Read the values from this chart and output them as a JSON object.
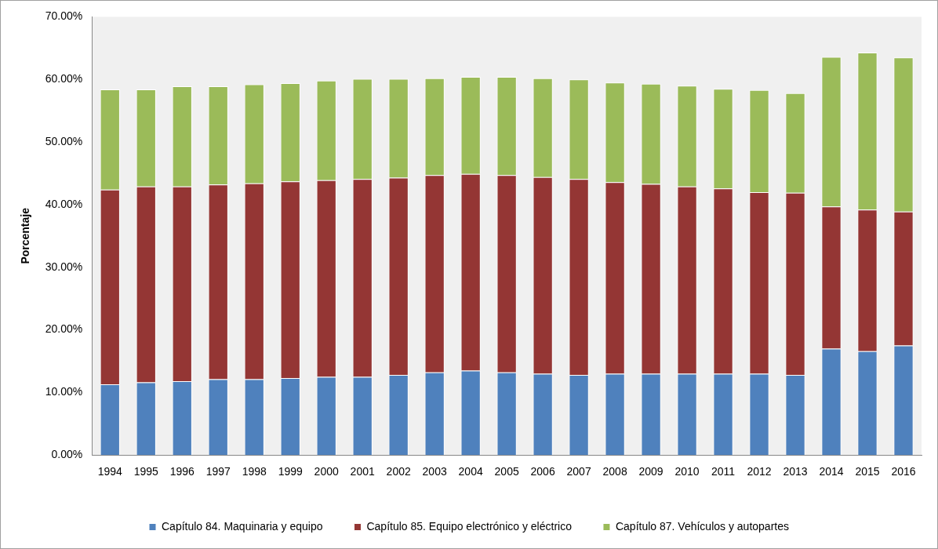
{
  "chart_data": {
    "type": "bar",
    "stacked": true,
    "ylabel": "Porcentaje",
    "legend": "bottom",
    "grid": false,
    "categories": [
      "1994",
      "1995",
      "1996",
      "1997",
      "1998",
      "1999",
      "2000",
      "2001",
      "2002",
      "2003",
      "2004",
      "2005",
      "2006",
      "2007",
      "2008",
      "2009",
      "2010",
      "2011",
      "2012",
      "2013",
      "2014",
      "2015",
      "2016"
    ],
    "ylim": [
      0,
      70
    ],
    "yticks": [
      {
        "value": 0,
        "label": "0.00%"
      },
      {
        "value": 10,
        "label": "10.00%"
      },
      {
        "value": 20,
        "label": "20.00%"
      },
      {
        "value": 30,
        "label": "30.00%"
      },
      {
        "value": 40,
        "label": "40.00%"
      },
      {
        "value": 50,
        "label": "50.00%"
      },
      {
        "value": 60,
        "label": "60.00%"
      },
      {
        "value": 70,
        "label": "70.00%"
      }
    ],
    "series": [
      {
        "name": "Capítulo 84. Maquinaria y equipo",
        "color": "#4f81bd",
        "values": [
          11.3,
          11.6,
          11.8,
          12.1,
          12.1,
          12.3,
          12.5,
          12.5,
          12.8,
          13.2,
          13.5,
          13.2,
          13.0,
          12.8,
          13.0,
          13.0,
          13.0,
          13.0,
          13.0,
          12.8,
          17.0,
          16.6,
          17.5
        ]
      },
      {
        "name": "Capítulo 85. Equipo electrónico y eléctrico",
        "color": "#943634",
        "values": [
          31.1,
          31.3,
          31.1,
          31.1,
          31.3,
          31.4,
          31.4,
          31.6,
          31.5,
          31.5,
          31.4,
          31.5,
          31.4,
          31.3,
          30.6,
          30.3,
          29.9,
          29.6,
          29.0,
          29.1,
          22.7,
          22.6,
          21.4
        ]
      },
      {
        "name": "Capítulo 87. Vehículos y autopartes",
        "color": "#9bbb59",
        "values": [
          16.0,
          15.5,
          16.0,
          15.7,
          15.8,
          15.7,
          15.9,
          16.0,
          15.8,
          15.5,
          15.5,
          15.7,
          15.8,
          15.9,
          15.9,
          16.0,
          16.1,
          15.9,
          16.3,
          15.9,
          23.9,
          25.1,
          24.6
        ]
      }
    ]
  }
}
